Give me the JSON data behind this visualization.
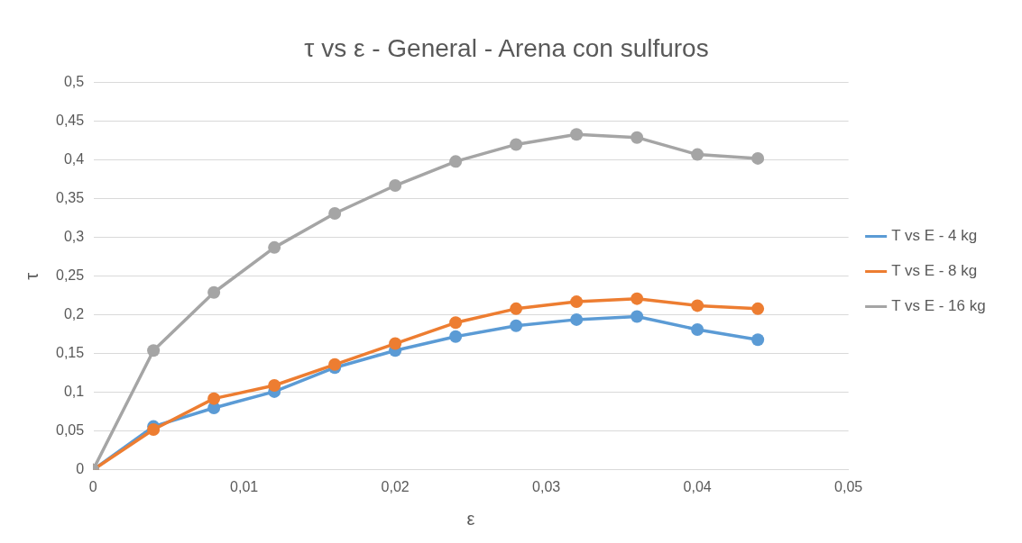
{
  "chart_data": {
    "type": "line",
    "title": "τ vs ε - General - Arena con sulfuros",
    "xlabel": "ε",
    "ylabel": "τ",
    "x": [
      0,
      0.004,
      0.008,
      0.012,
      0.016,
      0.02,
      0.024,
      0.028,
      0.032,
      0.036,
      0.04,
      0.044
    ],
    "series": [
      {
        "name": "T vs E - 4 kg",
        "color": "#5b9bd5",
        "values": [
          0,
          0.056,
          0.08,
          0.101,
          0.132,
          0.154,
          0.172,
          0.186,
          0.194,
          0.198,
          0.181,
          0.168
        ]
      },
      {
        "name": "T vs E - 8 kg",
        "color": "#ed7d31",
        "values": [
          0,
          0.052,
          0.092,
          0.109,
          0.136,
          0.163,
          0.19,
          0.208,
          0.217,
          0.221,
          0.212,
          0.208
        ]
      },
      {
        "name": "T vs E - 16 kg",
        "color": "#a5a5a5",
        "values": [
          0,
          0.154,
          0.229,
          0.287,
          0.331,
          0.367,
          0.398,
          0.42,
          0.433,
          0.429,
          0.407,
          0.402
        ]
      }
    ],
    "xlim": [
      0,
      0.05
    ],
    "xticks": [
      0,
      {
        "value": 0.01,
        "label": "0,01"
      },
      {
        "value": 0.02,
        "label": "0,02"
      },
      {
        "value": 0.03,
        "label": "0,03"
      },
      {
        "value": 0.04,
        "label": "0,04"
      },
      {
        "value": 0.05,
        "label": "0,05"
      }
    ],
    "ylim": [
      0,
      0.5
    ],
    "yticks": [
      0,
      {
        "value": 0.05,
        "label": "0,05"
      },
      {
        "value": 0.1,
        "label": "0,1"
      },
      {
        "value": 0.15,
        "label": "0,15"
      },
      {
        "value": 0.2,
        "label": "0,2"
      },
      {
        "value": 0.25,
        "label": "0,25"
      },
      {
        "value": 0.3,
        "label": "0,3"
      },
      {
        "value": 0.35,
        "label": "0,35"
      },
      {
        "value": 0.4,
        "label": "0,4"
      },
      {
        "value": 0.45,
        "label": "0,45"
      },
      {
        "value": 0.5,
        "label": "0,5"
      }
    ],
    "grid": "y",
    "legend": "right",
    "marker": "circle",
    "line_style": "solid"
  }
}
